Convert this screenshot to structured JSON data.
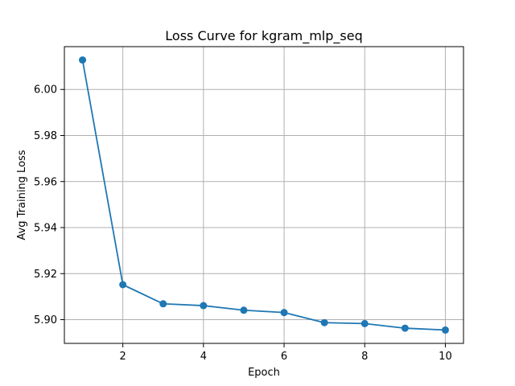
{
  "chart_data": {
    "type": "line",
    "title": "Loss Curve for kgram_mlp_seq",
    "xlabel": "Epoch",
    "ylabel": "Avg Training Loss",
    "x": [
      1,
      2,
      3,
      4,
      5,
      6,
      7,
      8,
      9,
      10
    ],
    "series": [
      {
        "values": [
          6.0128,
          5.9152,
          5.9069,
          5.9061,
          5.9041,
          5.9031,
          5.8987,
          5.8983,
          5.8963,
          5.8955
        ],
        "color": "#1f77b4",
        "marker": "circle"
      }
    ],
    "xlim": [
      0.55,
      10.45
    ],
    "ylim": [
      5.8897,
      6.0186
    ],
    "xticks": [
      2,
      4,
      6,
      8,
      10
    ],
    "xtick_labels": [
      "2",
      "4",
      "6",
      "8",
      "10"
    ],
    "yticks": [
      5.9,
      5.92,
      5.94,
      5.96,
      5.98,
      6.0
    ],
    "ytick_labels": [
      "5.90",
      "5.92",
      "5.94",
      "5.96",
      "5.98",
      "6.00"
    ],
    "grid": true,
    "legend": false
  }
}
